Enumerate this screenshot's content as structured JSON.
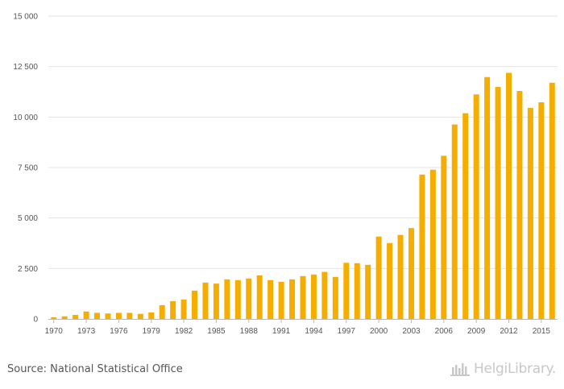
{
  "chart_data": {
    "type": "bar",
    "title": "",
    "xlabel": "",
    "ylabel": "",
    "ylim": [
      0,
      15000
    ],
    "yticks": [
      0,
      2500,
      5000,
      7500,
      10000,
      12500,
      15000
    ],
    "ytick_labels": [
      "0",
      "2 500",
      "5 000",
      "7 500",
      "10 000",
      "12 500",
      "15 000"
    ],
    "xtick_labels": [
      "1970",
      "1973",
      "1976",
      "1979",
      "1982",
      "1985",
      "1988",
      "1991",
      "1994",
      "1997",
      "2000",
      "2003",
      "2006",
      "2009",
      "2012",
      "2015"
    ],
    "grid": true,
    "bar_color": "#f5ad00",
    "categories": [
      "1970",
      "1971",
      "1972",
      "1973",
      "1974",
      "1975",
      "1976",
      "1977",
      "1978",
      "1979",
      "1980",
      "1981",
      "1982",
      "1983",
      "1984",
      "1985",
      "1986",
      "1987",
      "1988",
      "1989",
      "1990",
      "1991",
      "1992",
      "1993",
      "1994",
      "1995",
      "1996",
      "1997",
      "1998",
      "1999",
      "2000",
      "2001",
      "2002",
      "2003",
      "2004",
      "2005",
      "2006",
      "2007",
      "2008",
      "2009",
      "2010",
      "2011",
      "2012",
      "2013",
      "2014",
      "2015",
      "2016"
    ],
    "values": [
      80,
      130,
      200,
      370,
      300,
      270,
      300,
      300,
      250,
      320,
      680,
      880,
      960,
      1400,
      1800,
      1750,
      1960,
      1920,
      2000,
      2160,
      1920,
      1840,
      1960,
      2120,
      2200,
      2330,
      2080,
      2780,
      2760,
      2680,
      4080,
      3760,
      4160,
      4500,
      7150,
      7390,
      8080,
      9630,
      10190,
      11120,
      11980,
      11490,
      12190,
      11290,
      10450,
      10730,
      11700
    ]
  },
  "footer": {
    "source": "Source: National Statistical Office",
    "brand": "HelgiLibrary."
  }
}
